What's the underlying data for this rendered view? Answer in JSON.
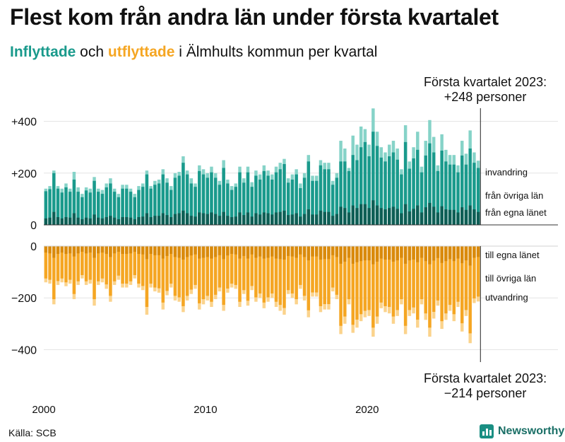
{
  "header": {
    "title": "Flest kom från andra län under första kvartalet",
    "subtitle_in": "Inflyttade",
    "subtitle_mid": " och ",
    "subtitle_out": "utflyttade",
    "subtitle_rest": " i Älmhults kommun per kvartal"
  },
  "annotations": {
    "top_line1": "Första kvartalet 2023:",
    "top_line2": "+248 personer",
    "bottom_line1": "Första kvartalet 2023:",
    "bottom_line2": "−214 personer"
  },
  "footer": {
    "source": "Källa: SCB",
    "brand": "Newsworthy"
  },
  "colors": {
    "in_own": "#0e5e55",
    "in_other": "#1a9a8c",
    "in_imm": "#86d3c8",
    "out_own": "#d98a0c",
    "out_other": "#f5a623",
    "out_emi": "#fbd38c",
    "grid": "#e3e3e3"
  },
  "chart_data": {
    "type": "bar",
    "title": "Flest kom från andra län under första kvartalet",
    "subtitle": "Inflyttade och utflyttade i Älmhults kommun per kvartal",
    "x_start": 2000,
    "x_step_quarters": 1,
    "xticks": [
      "2000",
      "2010",
      "2020"
    ],
    "yticks": [
      "+400",
      "+200",
      "0",
      "0",
      "−200",
      "−400"
    ],
    "ylim_in": [
      0,
      480
    ],
    "ylim_out": [
      -420,
      0
    ],
    "legend": {
      "in_imm": "invandring",
      "in_other": "från övriga län",
      "in_own": "från egna länet",
      "out_own": "till egna länet",
      "out_other": "till övriga län",
      "out_emi": "utvandring"
    },
    "series_in_total": [
      140,
      150,
      210,
      150,
      140,
      160,
      140,
      205,
      145,
      120,
      145,
      140,
      185,
      140,
      135,
      160,
      180,
      140,
      120,
      155,
      155,
      140,
      120,
      150,
      160,
      210,
      150,
      170,
      175,
      215,
      180,
      150,
      200,
      205,
      265,
      210,
      180,
      160,
      230,
      215,
      200,
      225,
      200,
      170,
      250,
      175,
      150,
      160,
      225,
      180,
      225,
      165,
      210,
      195,
      230,
      210,
      195,
      225,
      240,
      255,
      180,
      195,
      215,
      160,
      200,
      270,
      190,
      190,
      250,
      240,
      240,
      170,
      200,
      325,
      295,
      220,
      345,
      310,
      380,
      370,
      310,
      450,
      360,
      300,
      280,
      310,
      325,
      295,
      215,
      385,
      245,
      300,
      360,
      225,
      325,
      405,
      340,
      230,
      350,
      290,
      270,
      270,
      230,
      325,
      275,
      365,
      280,
      248
    ],
    "series_in_other": [
      105,
      110,
      150,
      110,
      100,
      115,
      100,
      130,
      100,
      85,
      105,
      100,
      130,
      100,
      95,
      115,
      125,
      100,
      85,
      110,
      110,
      100,
      85,
      105,
      115,
      150,
      110,
      120,
      125,
      150,
      125,
      105,
      140,
      145,
      185,
      150,
      125,
      115,
      160,
      150,
      140,
      155,
      140,
      120,
      170,
      125,
      105,
      115,
      155,
      125,
      155,
      115,
      145,
      135,
      160,
      145,
      135,
      155,
      165,
      180,
      125,
      135,
      150,
      110,
      140,
      185,
      130,
      130,
      175,
      165,
      165,
      120,
      140,
      175,
      180,
      160,
      195,
      185,
      220,
      240,
      200,
      265,
      230,
      195,
      185,
      200,
      210,
      190,
      150,
      240,
      165,
      195,
      215,
      155,
      200,
      230,
      210,
      160,
      215,
      185,
      175,
      175,
      155,
      200,
      175,
      220,
      180,
      170
    ],
    "series_in_own": [
      25,
      28,
      50,
      30,
      25,
      30,
      28,
      45,
      28,
      22,
      28,
      25,
      40,
      28,
      25,
      30,
      35,
      28,
      22,
      30,
      30,
      28,
      22,
      30,
      32,
      45,
      30,
      35,
      35,
      45,
      38,
      30,
      42,
      45,
      55,
      45,
      35,
      32,
      48,
      45,
      42,
      48,
      42,
      35,
      50,
      35,
      30,
      32,
      48,
      38,
      48,
      32,
      45,
      40,
      48,
      45,
      40,
      48,
      50,
      55,
      38,
      40,
      45,
      32,
      42,
      60,
      40,
      40,
      55,
      50,
      50,
      35,
      42,
      70,
      65,
      48,
      75,
      65,
      80,
      80,
      65,
      95,
      75,
      65,
      60,
      65,
      70,
      62,
      45,
      80,
      52,
      62,
      75,
      48,
      68,
      85,
      70,
      48,
      72,
      60,
      58,
      58,
      48,
      68,
      58,
      75,
      60,
      50
    ],
    "series_out_total": [
      -140,
      -145,
      -225,
      -150,
      -140,
      -155,
      -145,
      -205,
      -150,
      -125,
      -150,
      -145,
      -230,
      -150,
      -140,
      -165,
      -215,
      -150,
      -130,
      -160,
      -160,
      -150,
      -125,
      -160,
      -170,
      -265,
      -160,
      -175,
      -180,
      -245,
      -190,
      -160,
      -210,
      -215,
      -255,
      -210,
      -185,
      -165,
      -245,
      -225,
      -210,
      -235,
      -205,
      -175,
      -250,
      -180,
      -160,
      -165,
      -235,
      -185,
      -230,
      -170,
      -215,
      -200,
      -240,
      -215,
      -200,
      -235,
      -250,
      -265,
      -185,
      -200,
      -225,
      -165,
      -210,
      -275,
      -195,
      -195,
      -255,
      -245,
      -245,
      -175,
      -205,
      -340,
      -300,
      -225,
      -335,
      -315,
      -290,
      -275,
      -270,
      -350,
      -300,
      -240,
      -255,
      -260,
      -300,
      -270,
      -225,
      -340,
      -270,
      -260,
      -315,
      -225,
      -285,
      -350,
      -280,
      -230,
      -320,
      -285,
      -250,
      -290,
      -235,
      -330,
      -270,
      -375,
      -220,
      -214
    ],
    "series_out_own": [
      -25,
      -28,
      -45,
      -30,
      -25,
      -30,
      -28,
      -40,
      -28,
      -22,
      -28,
      -25,
      -45,
      -28,
      -25,
      -30,
      -42,
      -28,
      -22,
      -30,
      -30,
      -28,
      -22,
      -30,
      -32,
      -50,
      -30,
      -35,
      -35,
      -48,
      -38,
      -30,
      -42,
      -45,
      -52,
      -42,
      -36,
      -32,
      -48,
      -45,
      -42,
      -48,
      -42,
      -35,
      -50,
      -36,
      -30,
      -32,
      -48,
      -38,
      -48,
      -32,
      -45,
      -40,
      -48,
      -45,
      -40,
      -48,
      -50,
      -52,
      -38,
      -40,
      -45,
      -32,
      -42,
      -55,
      -40,
      -40,
      -52,
      -50,
      -50,
      -35,
      -42,
      -68,
      -60,
      -45,
      -68,
      -62,
      -58,
      -55,
      -55,
      -70,
      -60,
      -48,
      -52,
      -52,
      -60,
      -55,
      -45,
      -68,
      -55,
      -52,
      -62,
      -45,
      -58,
      -70,
      -56,
      -46,
      -65,
      -58,
      -50,
      -58,
      -48,
      -66,
      -55,
      -75,
      -45,
      -42
    ],
    "series_out_other": [
      -100,
      -102,
      -160,
      -105,
      -100,
      -110,
      -102,
      -145,
      -108,
      -90,
      -108,
      -105,
      -160,
      -108,
      -100,
      -118,
      -150,
      -108,
      -92,
      -115,
      -115,
      -108,
      -90,
      -115,
      -122,
      -185,
      -115,
      -125,
      -128,
      -170,
      -135,
      -115,
      -150,
      -153,
      -180,
      -150,
      -132,
      -118,
      -173,
      -160,
      -150,
      -167,
      -146,
      -125,
      -177,
      -128,
      -115,
      -118,
      -167,
      -132,
      -163,
      -122,
      -153,
      -143,
      -170,
      -153,
      -143,
      -167,
      -177,
      -187,
      -132,
      -143,
      -160,
      -118,
      -150,
      -193,
      -139,
      -139,
      -180,
      -174,
      -174,
      -125,
      -146,
      -240,
      -212,
      -160,
      -236,
      -222,
      -205,
      -195,
      -192,
      -245,
      -212,
      -170,
      -180,
      -183,
      -212,
      -192,
      -160,
      -240,
      -192,
      -185,
      -222,
      -160,
      -202,
      -245,
      -198,
      -164,
      -225,
      -202,
      -177,
      -205,
      -167,
      -232,
      -192,
      -262,
      -157,
      -153
    ]
  }
}
